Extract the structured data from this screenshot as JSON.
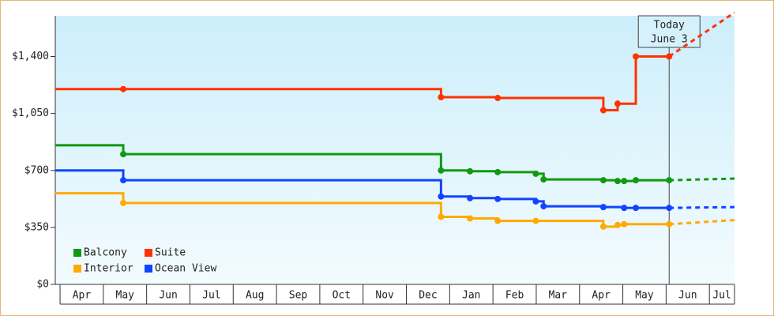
{
  "chart_data": {
    "type": "step-line",
    "months": [
      "Apr",
      "May",
      "Jun",
      "Jul",
      "Aug",
      "Sep",
      "Oct",
      "Nov",
      "Dec",
      "Jan",
      "Feb",
      "Mar",
      "Apr",
      "May",
      "Jun",
      "Jul"
    ],
    "xlim": [
      -0.11,
      15.58
    ],
    "ylim": [
      0,
      1650
    ],
    "yticks": [
      {
        "value": 0,
        "label": "$0"
      },
      {
        "value": 350,
        "label": "$350"
      },
      {
        "value": 700,
        "label": "$700"
      },
      {
        "value": 1050,
        "label": "$1,050"
      },
      {
        "value": 1400,
        "label": "$1,400"
      }
    ],
    "annotation": {
      "x": 14.07,
      "lines": [
        "Today",
        "June 3"
      ]
    },
    "forecast_x": [
      14.07,
      15.58
    ],
    "series": [
      {
        "name": "Balcony",
        "color": "#119911",
        "x": [
          -0.11,
          1.46,
          8.8,
          9.47,
          10.11,
          10.99,
          11.17,
          12.55,
          12.88,
          13.03,
          13.3,
          14.07
        ],
        "values": [
          855,
          800,
          700,
          695,
          690,
          680,
          645,
          640,
          635,
          635,
          640,
          640
        ],
        "forecast_values": [
          640,
          650
        ]
      },
      {
        "name": "Suite",
        "color": "#ff3300",
        "x": [
          -0.11,
          1.46,
          8.8,
          10.11,
          12.55,
          12.88,
          13.3,
          14.07
        ],
        "values": [
          1200,
          1200,
          1150,
          1145,
          1070,
          1110,
          1400,
          1400
        ],
        "forecast_values": [
          1400,
          1670
        ]
      },
      {
        "name": "Interior",
        "color": "#ffaa00",
        "x": [
          -0.11,
          1.46,
          8.8,
          9.47,
          10.11,
          10.99,
          12.55,
          12.88,
          13.03,
          14.07
        ],
        "values": [
          560,
          500,
          415,
          405,
          390,
          390,
          355,
          365,
          370,
          370
        ],
        "forecast_values": [
          370,
          395
        ]
      },
      {
        "name": "Ocean View",
        "color": "#1144ff",
        "x": [
          -0.11,
          1.46,
          8.8,
          9.47,
          10.11,
          10.99,
          11.17,
          12.55,
          13.03,
          13.3,
          14.07
        ],
        "values": [
          700,
          640,
          540,
          530,
          525,
          510,
          480,
          475,
          470,
          470,
          470
        ],
        "forecast_values": [
          470,
          475
        ]
      }
    ]
  }
}
